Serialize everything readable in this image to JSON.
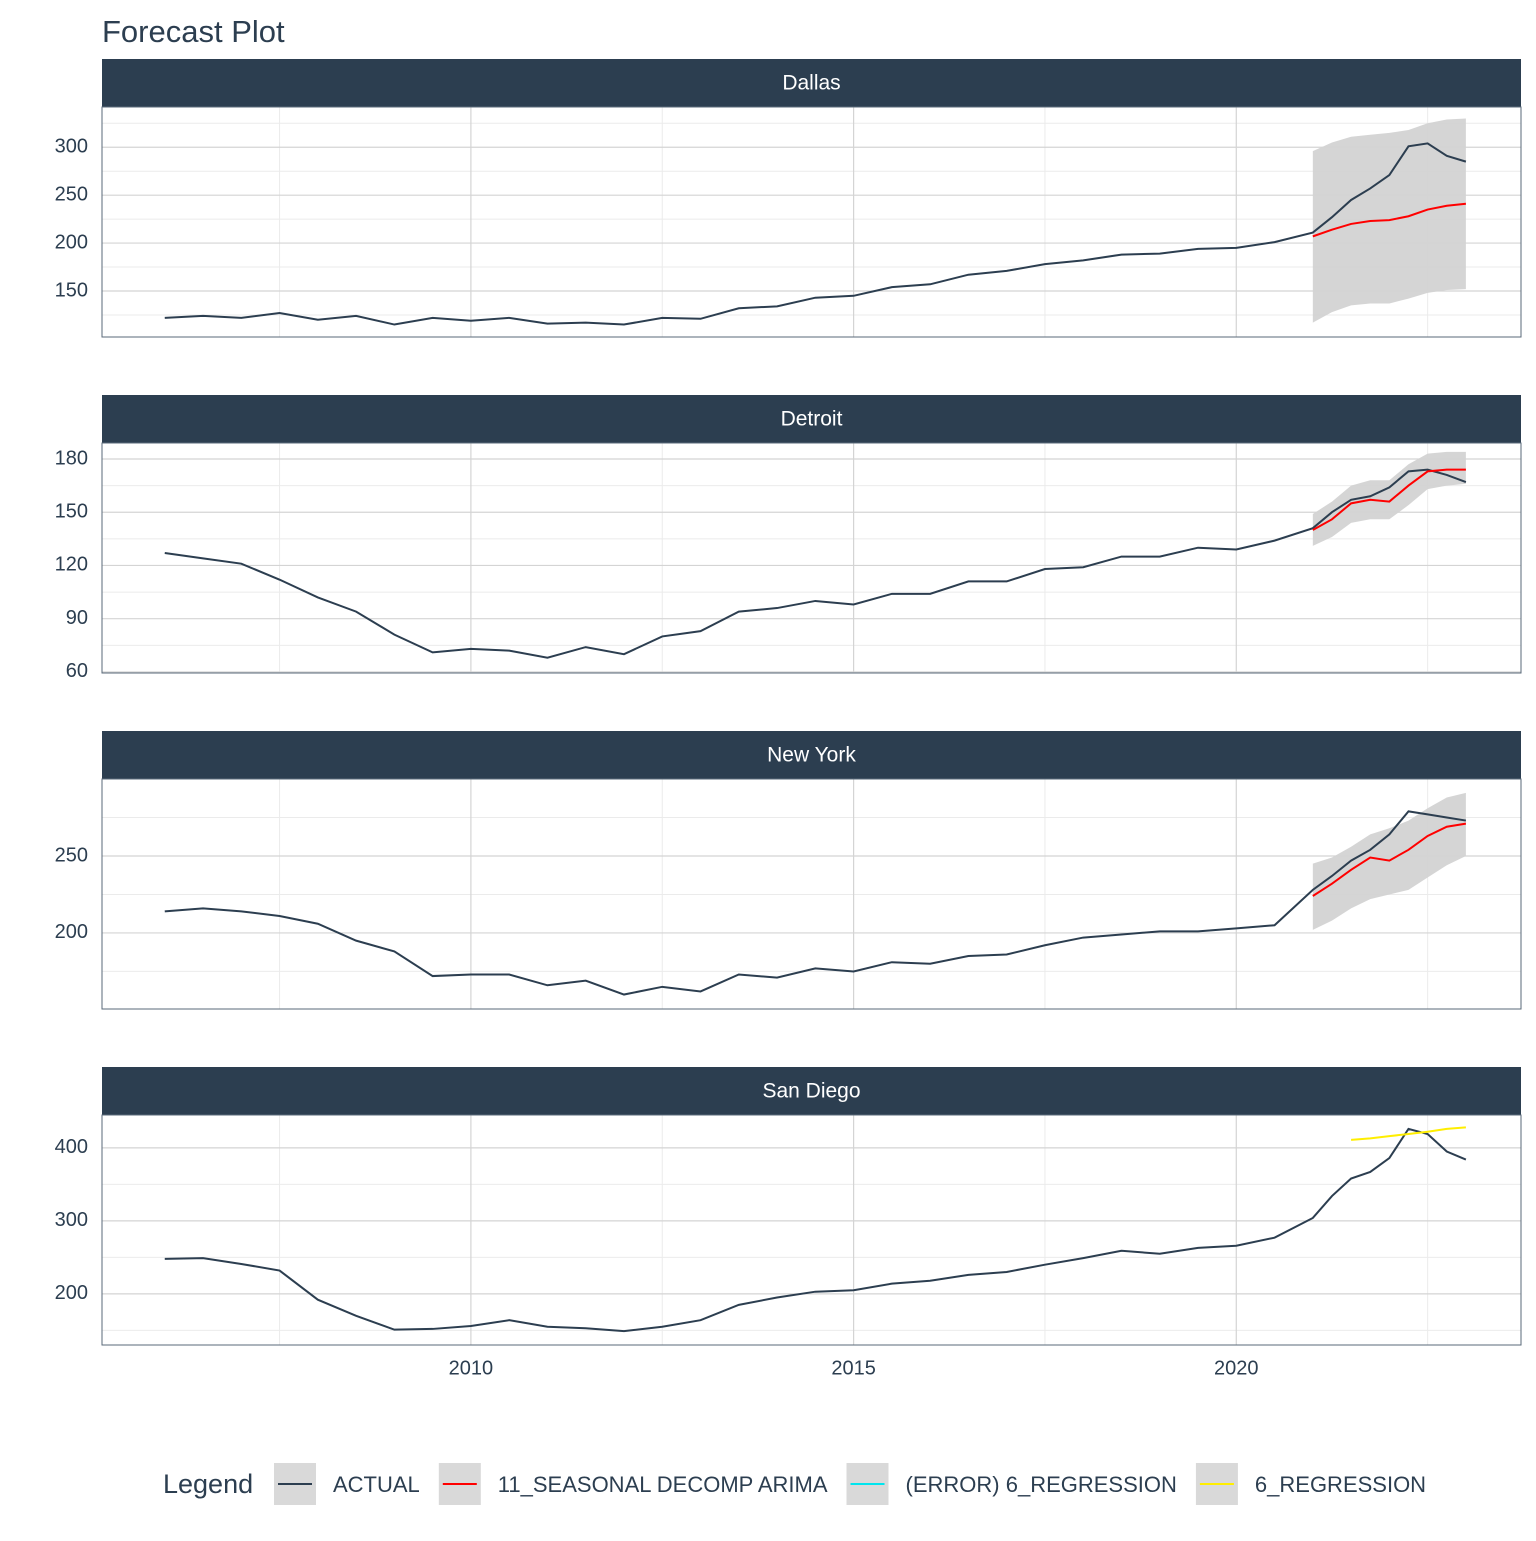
{
  "title": "Forecast Plot",
  "legend": {
    "title": "Legend",
    "items": [
      {
        "name": "ACTUAL",
        "color": "#2c3e50"
      },
      {
        "name": "11_SEASONAL DECOMP ARIMA",
        "color": "#ff0000"
      },
      {
        "name": "(ERROR) 6_REGRESSION",
        "color": "#00e5ee"
      },
      {
        "name": "6_REGRESSION",
        "color": "#ffee00"
      }
    ]
  },
  "chart_data": [
    {
      "type": "line",
      "facet": "Dallas",
      "xlim": [
        2005.18,
        2023.72
      ],
      "xticks": [
        2010,
        2015,
        2020
      ],
      "ylim": [
        102,
        342
      ],
      "yticks": [
        150,
        200,
        250,
        300
      ],
      "grid": true,
      "x": [
        2006,
        2006.5,
        2007,
        2007.5,
        2008,
        2008.5,
        2009,
        2009.5,
        2010,
        2010.5,
        2011,
        2011.5,
        2012,
        2012.5,
        2013,
        2013.5,
        2014,
        2014.5,
        2015,
        2015.5,
        2016,
        2016.5,
        2017,
        2017.5,
        2018,
        2018.5,
        2019,
        2019.5,
        2020,
        2020.5,
        2021,
        2021.25,
        2021.5,
        2021.75,
        2022,
        2022.25,
        2022.5,
        2022.75,
        2023
      ],
      "series": [
        {
          "name": "ACTUAL",
          "color": "#2c3e50",
          "values": [
            122,
            124,
            122,
            127,
            120,
            124,
            115,
            122,
            119,
            122,
            116,
            117,
            115,
            122,
            121,
            132,
            134,
            143,
            145,
            154,
            157,
            167,
            171,
            178,
            182,
            188,
            189,
            194,
            195,
            201,
            211,
            227,
            245,
            257,
            271,
            301,
            304,
            291,
            285
          ]
        },
        {
          "name": "11_SEASONAL DECOMP ARIMA",
          "color": "#ff0000",
          "values": [
            null,
            null,
            null,
            null,
            null,
            null,
            null,
            null,
            null,
            null,
            null,
            null,
            null,
            null,
            null,
            null,
            null,
            null,
            null,
            null,
            null,
            null,
            null,
            null,
            null,
            null,
            null,
            null,
            null,
            null,
            207,
            214,
            220,
            223,
            224,
            228,
            235,
            239,
            241
          ],
          "lower": [
            null,
            null,
            null,
            null,
            null,
            null,
            null,
            null,
            null,
            null,
            null,
            null,
            null,
            null,
            null,
            null,
            null,
            null,
            null,
            null,
            null,
            null,
            null,
            null,
            null,
            null,
            null,
            null,
            null,
            null,
            117,
            128,
            135,
            137,
            137,
            142,
            148,
            151,
            152
          ],
          "upper": [
            null,
            null,
            null,
            null,
            null,
            null,
            null,
            null,
            null,
            null,
            null,
            null,
            null,
            null,
            null,
            null,
            null,
            null,
            null,
            null,
            null,
            null,
            null,
            null,
            null,
            null,
            null,
            null,
            null,
            null,
            296,
            305,
            311,
            313,
            315,
            318,
            325,
            329,
            330
          ]
        }
      ]
    },
    {
      "type": "line",
      "facet": "Detroit",
      "xlim": [
        2005.18,
        2023.72
      ],
      "xticks": [
        2010,
        2015,
        2020
      ],
      "ylim": [
        59.4,
        189
      ],
      "yticks": [
        60,
        90,
        120,
        150,
        180
      ],
      "grid": true,
      "x": [
        2006,
        2006.5,
        2007,
        2007.5,
        2008,
        2008.5,
        2009,
        2009.5,
        2010,
        2010.5,
        2011,
        2011.5,
        2012,
        2012.5,
        2013,
        2013.5,
        2014,
        2014.5,
        2015,
        2015.5,
        2016,
        2016.5,
        2017,
        2017.5,
        2018,
        2018.5,
        2019,
        2019.5,
        2020,
        2020.5,
        2021,
        2021.25,
        2021.5,
        2021.75,
        2022,
        2022.25,
        2022.5,
        2022.75,
        2023
      ],
      "series": [
        {
          "name": "ACTUAL",
          "color": "#2c3e50",
          "values": [
            127,
            124,
            121,
            112,
            102,
            94,
            81,
            71,
            73,
            72,
            68,
            74,
            70,
            80,
            83,
            94,
            96,
            100,
            98,
            104,
            104,
            111,
            111,
            118,
            119,
            125,
            125,
            130,
            129,
            134,
            141,
            150,
            157,
            159,
            164,
            173,
            174,
            171,
            167
          ]
        },
        {
          "name": "11_SEASONAL DECOMP ARIMA",
          "color": "#ff0000",
          "values": [
            null,
            null,
            null,
            null,
            null,
            null,
            null,
            null,
            null,
            null,
            null,
            null,
            null,
            null,
            null,
            null,
            null,
            null,
            null,
            null,
            null,
            null,
            null,
            null,
            null,
            null,
            null,
            null,
            null,
            null,
            140,
            146,
            155,
            157,
            156,
            165,
            173,
            174,
            174
          ],
          "lower": [
            null,
            null,
            null,
            null,
            null,
            null,
            null,
            null,
            null,
            null,
            null,
            null,
            null,
            null,
            null,
            null,
            null,
            null,
            null,
            null,
            null,
            null,
            null,
            null,
            null,
            null,
            null,
            null,
            null,
            null,
            131,
            136,
            144,
            146,
            146,
            154,
            163,
            165,
            166
          ],
          "upper": [
            null,
            null,
            null,
            null,
            null,
            null,
            null,
            null,
            null,
            null,
            null,
            null,
            null,
            null,
            null,
            null,
            null,
            null,
            null,
            null,
            null,
            null,
            null,
            null,
            null,
            null,
            null,
            null,
            null,
            null,
            149,
            156,
            165,
            168,
            168,
            177,
            183,
            184,
            184
          ]
        }
      ]
    },
    {
      "type": "line",
      "facet": "New York",
      "xlim": [
        2005.18,
        2023.72
      ],
      "xticks": [
        2010,
        2015,
        2020
      ],
      "ylim": [
        150.6,
        300
      ],
      "yticks": [
        200,
        250
      ],
      "grid": true,
      "x": [
        2006,
        2006.5,
        2007,
        2007.5,
        2008,
        2008.5,
        2009,
        2009.5,
        2010,
        2010.5,
        2011,
        2011.5,
        2012,
        2012.5,
        2013,
        2013.5,
        2014,
        2014.5,
        2015,
        2015.5,
        2016,
        2016.5,
        2017,
        2017.5,
        2018,
        2018.5,
        2019,
        2019.5,
        2020,
        2020.5,
        2021,
        2021.25,
        2021.5,
        2021.75,
        2022,
        2022.25,
        2022.5,
        2022.75,
        2023
      ],
      "series": [
        {
          "name": "ACTUAL",
          "color": "#2c3e50",
          "values": [
            214,
            216,
            214,
            211,
            206,
            195,
            188,
            172,
            173,
            173,
            166,
            169,
            160,
            165,
            162,
            173,
            171,
            177,
            175,
            181,
            180,
            185,
            186,
            192,
            197,
            199,
            201,
            201,
            203,
            205,
            228,
            237,
            247,
            254,
            264,
            279,
            277,
            275,
            273
          ]
        },
        {
          "name": "11_SEASONAL DECOMP ARIMA",
          "color": "#ff0000",
          "values": [
            null,
            null,
            null,
            null,
            null,
            null,
            null,
            null,
            null,
            null,
            null,
            null,
            null,
            null,
            null,
            null,
            null,
            null,
            null,
            null,
            null,
            null,
            null,
            null,
            null,
            null,
            null,
            null,
            null,
            null,
            224,
            232,
            241,
            249,
            247,
            254,
            263,
            269,
            271
          ],
          "lower": [
            null,
            null,
            null,
            null,
            null,
            null,
            null,
            null,
            null,
            null,
            null,
            null,
            null,
            null,
            null,
            null,
            null,
            null,
            null,
            null,
            null,
            null,
            null,
            null,
            null,
            null,
            null,
            null,
            null,
            null,
            202,
            208,
            216,
            222,
            225,
            228,
            236,
            244,
            250
          ],
          "upper": [
            null,
            null,
            null,
            null,
            null,
            null,
            null,
            null,
            null,
            null,
            null,
            null,
            null,
            null,
            null,
            null,
            null,
            null,
            null,
            null,
            null,
            null,
            null,
            null,
            null,
            null,
            null,
            null,
            null,
            null,
            245,
            249,
            256,
            264,
            268,
            273,
            281,
            288,
            291
          ]
        }
      ]
    },
    {
      "type": "line",
      "facet": "San Diego",
      "xlim": [
        2005.18,
        2023.72
      ],
      "xticks": [
        2010,
        2015,
        2020
      ],
      "ylim": [
        130,
        445
      ],
      "yticks": [
        200,
        300,
        400
      ],
      "grid": true,
      "x": [
        2006,
        2006.5,
        2007,
        2007.5,
        2008,
        2008.5,
        2009,
        2009.5,
        2010,
        2010.5,
        2011,
        2011.5,
        2012,
        2012.5,
        2013,
        2013.5,
        2014,
        2014.5,
        2015,
        2015.5,
        2016,
        2016.5,
        2017,
        2017.5,
        2018,
        2018.5,
        2019,
        2019.5,
        2020,
        2020.5,
        2021,
        2021.25,
        2021.5,
        2021.75,
        2022,
        2022.25,
        2022.5,
        2022.75,
        2023
      ],
      "series": [
        {
          "name": "ACTUAL",
          "color": "#2c3e50",
          "values": [
            248,
            249,
            241,
            232,
            192,
            170,
            151,
            152,
            156,
            164,
            155,
            153,
            149,
            155,
            164,
            185,
            195,
            203,
            205,
            214,
            218,
            226,
            230,
            240,
            249,
            259,
            255,
            263,
            266,
            277,
            304,
            334,
            358,
            367,
            386,
            426,
            419,
            395,
            384
          ]
        },
        {
          "name": "6_REGRESSION",
          "color": "#ffee00",
          "values": [
            null,
            null,
            null,
            null,
            null,
            null,
            null,
            null,
            null,
            null,
            null,
            null,
            null,
            null,
            null,
            null,
            null,
            null,
            null,
            null,
            null,
            null,
            null,
            null,
            null,
            null,
            null,
            null,
            null,
            null,
            null,
            null,
            411,
            413,
            416,
            419,
            422,
            426,
            428
          ]
        }
      ]
    }
  ]
}
